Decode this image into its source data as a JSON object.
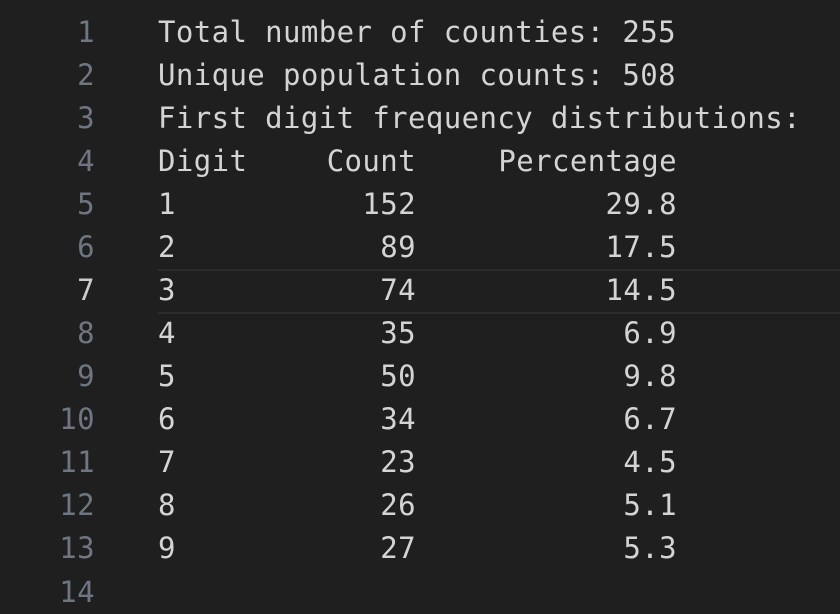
{
  "lines": [
    {
      "num": "1",
      "text": "Total number of counties: 255"
    },
    {
      "num": "2",
      "text": "Unique population counts: 508"
    },
    {
      "num": "3",
      "text": "First digit frequency distributions:"
    },
    {
      "num": "4",
      "header": {
        "digit": "Digit",
        "count": "Count",
        "pct": "Percentage"
      }
    },
    {
      "num": "5",
      "row": {
        "digit": "1",
        "count": "152",
        "pct": "29.8"
      }
    },
    {
      "num": "6",
      "row": {
        "digit": "2",
        "count": "89",
        "pct": "17.5"
      }
    },
    {
      "num": "7",
      "row": {
        "digit": "3",
        "count": "74",
        "pct": "14.5"
      }
    },
    {
      "num": "8",
      "row": {
        "digit": "4",
        "count": "35",
        "pct": "6.9"
      }
    },
    {
      "num": "9",
      "row": {
        "digit": "5",
        "count": "50",
        "pct": "9.8"
      }
    },
    {
      "num": "10",
      "row": {
        "digit": "6",
        "count": "34",
        "pct": "6.7"
      }
    },
    {
      "num": "11",
      "row": {
        "digit": "7",
        "count": "23",
        "pct": "4.5"
      }
    },
    {
      "num": "12",
      "row": {
        "digit": "8",
        "count": "26",
        "pct": "5.1"
      }
    },
    {
      "num": "13",
      "row": {
        "digit": "9",
        "count": "27",
        "pct": "5.3"
      }
    },
    {
      "num": "14",
      "text": ""
    }
  ],
  "colors": {
    "background": "#1f1f1f",
    "text": "#d4d4d4",
    "gutter": "#6e7681",
    "gutter_active": "#cccccc",
    "current_line_border": "#2c2c2c"
  }
}
